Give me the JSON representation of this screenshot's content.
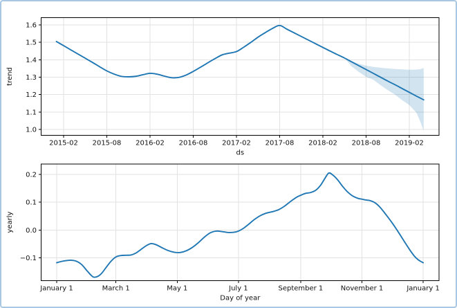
{
  "figure": {
    "kind": "prophet-forecast-components",
    "background": "#ffffff",
    "frame_border_color": "#a9c7e3",
    "line_color": "#1f77b4",
    "uncertainty_band_color": "rgba(31,119,180,0.2)",
    "grid_color": "#e2e2e2",
    "spine_color": "#000000",
    "text_color": "#111111"
  },
  "chart_data": [
    {
      "type": "line",
      "name": "trend",
      "xlabel": "ds",
      "ylabel": "trend",
      "x_unit": "months since 2015-01",
      "grid": true,
      "legend": "none",
      "xlim": [
        -2.12,
        53.13
      ],
      "ylim": [
        0.966,
        1.642
      ],
      "xticks": [
        {
          "v": 1,
          "label": "2015-02"
        },
        {
          "v": 7,
          "label": "2015-08"
        },
        {
          "v": 13,
          "label": "2016-02"
        },
        {
          "v": 19,
          "label": "2016-08"
        },
        {
          "v": 25,
          "label": "2017-02"
        },
        {
          "v": 31,
          "label": "2017-08"
        },
        {
          "v": 37,
          "label": "2018-02"
        },
        {
          "v": 43,
          "label": "2018-08"
        },
        {
          "v": 49,
          "label": "2019-02"
        }
      ],
      "yticks": [
        {
          "v": 1.0,
          "label": "1.0"
        },
        {
          "v": 1.1,
          "label": "1.1"
        },
        {
          "v": 1.2,
          "label": "1.2"
        },
        {
          "v": 1.3,
          "label": "1.3"
        },
        {
          "v": 1.4,
          "label": "1.4"
        },
        {
          "v": 1.5,
          "label": "1.5"
        },
        {
          "v": 1.6,
          "label": "1.6"
        }
      ],
      "series": [
        {
          "name": "trend",
          "x": [
            0,
            1,
            2,
            3,
            4,
            5,
            6,
            7,
            8,
            9,
            10,
            11,
            12,
            13,
            14,
            15,
            16,
            17,
            18,
            19,
            20,
            21,
            22,
            23,
            24,
            25,
            26,
            27,
            28,
            29,
            30,
            31,
            32,
            33,
            34,
            35,
            36,
            37,
            38,
            39,
            40,
            41,
            42,
            43,
            44,
            45,
            46,
            47,
            48,
            49,
            50,
            51
          ],
          "y": [
            1.505,
            1.481,
            1.457,
            1.433,
            1.409,
            1.385,
            1.36,
            1.336,
            1.318,
            1.305,
            1.302,
            1.305,
            1.314,
            1.322,
            1.317,
            1.306,
            1.297,
            1.299,
            1.312,
            1.333,
            1.357,
            1.382,
            1.406,
            1.428,
            1.438,
            1.447,
            1.472,
            1.5,
            1.53,
            1.556,
            1.58,
            1.597,
            1.576,
            1.555,
            1.534,
            1.513,
            1.492,
            1.471,
            1.45,
            1.43,
            1.41,
            1.388,
            1.366,
            1.344,
            1.322,
            1.3,
            1.278,
            1.257,
            1.235,
            1.213,
            1.191,
            1.17
          ]
        }
      ],
      "band": {
        "name": "uncertainty-interval",
        "x": [
          40,
          41,
          42,
          43,
          44,
          45,
          46,
          47,
          48,
          49,
          50,
          50.5,
          51
        ],
        "upper": [
          1.41,
          1.392,
          1.377,
          1.366,
          1.359,
          1.354,
          1.35,
          1.347,
          1.345,
          1.343,
          1.344,
          1.346,
          1.352
        ],
        "lower": [
          1.41,
          1.362,
          1.33,
          1.302,
          1.285,
          1.255,
          1.226,
          1.2,
          1.168,
          1.14,
          1.095,
          1.048,
          0.992
        ]
      }
    },
    {
      "type": "line",
      "name": "yearly",
      "xlabel": "Day of year",
      "ylabel": "yearly",
      "x_unit": "day of year",
      "grid": true,
      "legend": "none",
      "xlim": [
        -14.5,
        381.8
      ],
      "ylim": [
        -0.182,
        0.2375
      ],
      "xticks": [
        {
          "v": 1,
          "label": "January 1"
        },
        {
          "v": 60,
          "label": "March 1"
        },
        {
          "v": 121,
          "label": "May 1"
        },
        {
          "v": 182,
          "label": "July 1"
        },
        {
          "v": 244,
          "label": "September 1"
        },
        {
          "v": 305,
          "label": "November 1"
        },
        {
          "v": 366,
          "label": "January 1"
        }
      ],
      "yticks": [
        {
          "v": -0.1,
          "label": "−0.1"
        },
        {
          "v": 0.0,
          "label": "0.0"
        },
        {
          "v": 0.1,
          "label": "0.1"
        },
        {
          "v": 0.2,
          "label": "0.2"
        }
      ],
      "series": [
        {
          "name": "yearly",
          "x": [
            1,
            6,
            11,
            16,
            21,
            26,
            31,
            35,
            38,
            42,
            46,
            50,
            55,
            60,
            65,
            70,
            75,
            80,
            85,
            90,
            95,
            100,
            106,
            112,
            118,
            124,
            130,
            136,
            142,
            148,
            154,
            160,
            166,
            172,
            178,
            182,
            187,
            192,
            198,
            204,
            210,
            216,
            222,
            228,
            234,
            240,
            244,
            249,
            254,
            259,
            264,
            268,
            272,
            276,
            281,
            286,
            291,
            296,
            301,
            305,
            309,
            313,
            318,
            323,
            329,
            335,
            341,
            347,
            352,
            357,
            361,
            366
          ],
          "y": [
            -0.118,
            -0.113,
            -0.11,
            -0.109,
            -0.113,
            -0.125,
            -0.146,
            -0.162,
            -0.17,
            -0.167,
            -0.155,
            -0.136,
            -0.113,
            -0.097,
            -0.092,
            -0.091,
            -0.09,
            -0.083,
            -0.07,
            -0.057,
            -0.049,
            -0.053,
            -0.064,
            -0.074,
            -0.08,
            -0.081,
            -0.075,
            -0.063,
            -0.046,
            -0.026,
            -0.01,
            -0.004,
            -0.006,
            -0.009,
            -0.008,
            -0.004,
            0.006,
            0.02,
            0.038,
            0.052,
            0.061,
            0.066,
            0.073,
            0.086,
            0.103,
            0.118,
            0.125,
            0.132,
            0.135,
            0.143,
            0.162,
            0.185,
            0.205,
            0.198,
            0.18,
            0.156,
            0.136,
            0.122,
            0.114,
            0.111,
            0.108,
            0.106,
            0.098,
            0.082,
            0.055,
            0.026,
            -0.006,
            -0.04,
            -0.068,
            -0.093,
            -0.107,
            -0.118
          ]
        }
      ],
      "band": null
    }
  ]
}
